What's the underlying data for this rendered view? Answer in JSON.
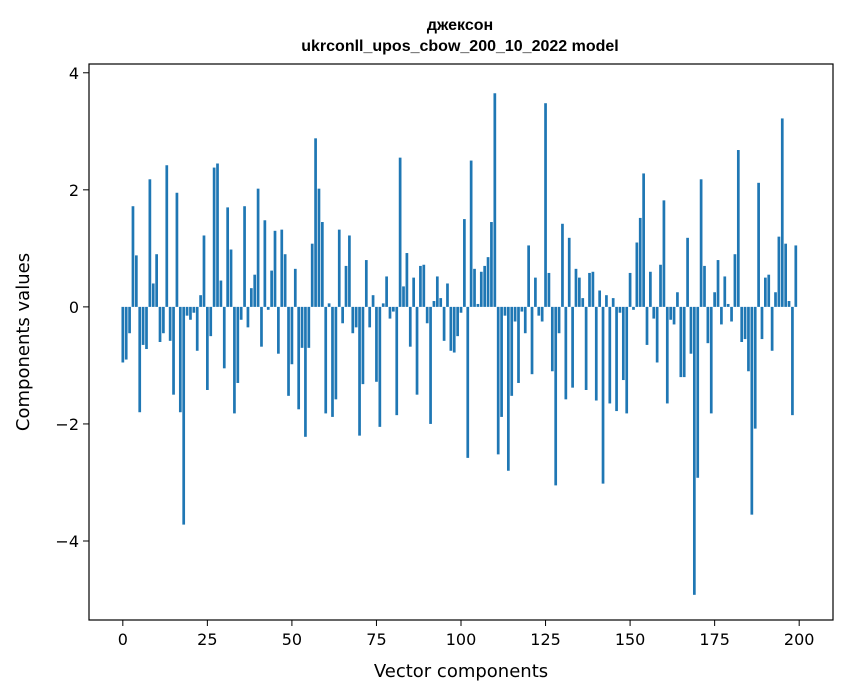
{
  "chart_data": {
    "type": "bar",
    "title": "джексон",
    "subtitle": "ukrconll_upos_cbow_200_10_2022 model",
    "xlabel": "Vector components",
    "ylabel": "Components values",
    "xlim": [
      -10,
      210
    ],
    "ylim": [
      -5.35,
      4.15
    ],
    "xticks": [
      0,
      25,
      50,
      75,
      100,
      125,
      150,
      175,
      200
    ],
    "yticks": [
      -4,
      -2,
      0,
      2,
      4
    ],
    "ytick_labels": [
      "−4",
      "−2",
      "0",
      "2",
      "4"
    ],
    "bar_color": "#1f77b4",
    "grid": false,
    "x": [
      0,
      1,
      2,
      3,
      4,
      5,
      6,
      7,
      8,
      9,
      10,
      11,
      12,
      13,
      14,
      15,
      16,
      17,
      18,
      19,
      20,
      21,
      22,
      23,
      24,
      25,
      26,
      27,
      28,
      29,
      30,
      31,
      32,
      33,
      34,
      35,
      36,
      37,
      38,
      39,
      40,
      41,
      42,
      43,
      44,
      45,
      46,
      47,
      48,
      49,
      50,
      51,
      52,
      53,
      54,
      55,
      56,
      57,
      58,
      59,
      60,
      61,
      62,
      63,
      64,
      65,
      66,
      67,
      68,
      69,
      70,
      71,
      72,
      73,
      74,
      75,
      76,
      77,
      78,
      79,
      80,
      81,
      82,
      83,
      84,
      85,
      86,
      87,
      88,
      89,
      90,
      91,
      92,
      93,
      94,
      95,
      96,
      97,
      98,
      99,
      100,
      101,
      102,
      103,
      104,
      105,
      106,
      107,
      108,
      109,
      110,
      111,
      112,
      113,
      114,
      115,
      116,
      117,
      118,
      119,
      120,
      121,
      122,
      123,
      124,
      125,
      126,
      127,
      128,
      129,
      130,
      131,
      132,
      133,
      134,
      135,
      136,
      137,
      138,
      139,
      140,
      141,
      142,
      143,
      144,
      145,
      146,
      147,
      148,
      149,
      150,
      151,
      152,
      153,
      154,
      155,
      156,
      157,
      158,
      159,
      160,
      161,
      162,
      163,
      164,
      165,
      166,
      167,
      168,
      169,
      170,
      171,
      172,
      173,
      174,
      175,
      176,
      177,
      178,
      179,
      180,
      181,
      182,
      183,
      184,
      185,
      186,
      187,
      188,
      189,
      190,
      191,
      192,
      193,
      194,
      195,
      196,
      197,
      198,
      199
    ],
    "values": [
      -0.95,
      -0.9,
      -0.45,
      1.72,
      0.88,
      -1.8,
      -0.65,
      -0.72,
      2.18,
      0.4,
      0.9,
      -0.6,
      -0.45,
      2.42,
      -0.58,
      -1.5,
      1.95,
      -1.8,
      -3.72,
      -0.15,
      -0.22,
      -0.1,
      -0.75,
      0.2,
      1.22,
      -1.42,
      -0.5,
      2.38,
      2.45,
      0.45,
      -1.05,
      1.7,
      0.98,
      -1.82,
      -1.3,
      -0.22,
      1.72,
      -0.35,
      0.32,
      0.55,
      2.02,
      -0.68,
      1.48,
      -0.05,
      0.62,
      1.3,
      -0.8,
      1.32,
      0.9,
      -1.52,
      -0.98,
      0.65,
      -1.75,
      -0.7,
      -2.22,
      -0.7,
      1.08,
      2.88,
      2.02,
      1.45,
      -1.82,
      0.06,
      -1.88,
      -1.58,
      1.32,
      -0.28,
      0.7,
      1.22,
      -0.45,
      -0.35,
      -2.2,
      -1.32,
      0.8,
      -0.35,
      0.2,
      -1.28,
      -2.05,
      0.06,
      0.52,
      -0.2,
      -0.08,
      -1.85,
      2.55,
      0.35,
      0.92,
      -0.68,
      0.5,
      -1.5,
      0.7,
      0.72,
      -0.28,
      -2.0,
      0.1,
      0.52,
      0.15,
      -0.58,
      0.4,
      -0.75,
      -0.78,
      -0.5,
      -0.1,
      1.5,
      -2.58,
      2.5,
      0.65,
      0.05,
      0.6,
      0.7,
      0.85,
      1.45,
      3.65,
      -2.52,
      -1.88,
      -0.15,
      -2.8,
      -1.52,
      -0.25,
      -1.3,
      -0.08,
      -0.45,
      1.05,
      -1.15,
      0.5,
      -0.15,
      -0.25,
      3.48,
      0.58,
      -1.1,
      -3.05,
      -0.45,
      1.42,
      -1.58,
      1.18,
      -1.38,
      0.65,
      0.5,
      0.15,
      -1.42,
      0.58,
      0.6,
      -1.6,
      0.28,
      -3.02,
      0.2,
      -1.65,
      0.15,
      -1.78,
      -0.1,
      -1.25,
      -1.82,
      0.58,
      -0.05,
      1.1,
      1.52,
      2.28,
      -0.65,
      0.6,
      -0.2,
      -0.95,
      0.72,
      1.82,
      -1.65,
      -0.22,
      -0.3,
      0.25,
      -1.2,
      -1.2,
      1.18,
      -0.8,
      -4.92,
      -2.92,
      2.18,
      0.7,
      -0.62,
      -1.82,
      0.25,
      0.8,
      -0.3,
      0.52,
      0.05,
      -0.25,
      0.9,
      2.68,
      -0.6,
      -0.55,
      -1.1,
      -3.55,
      -2.08,
      2.12,
      -0.55,
      0.5,
      0.55,
      -0.75,
      0.25,
      1.2,
      3.22,
      1.08,
      0.1,
      -1.85,
      1.05
    ]
  }
}
